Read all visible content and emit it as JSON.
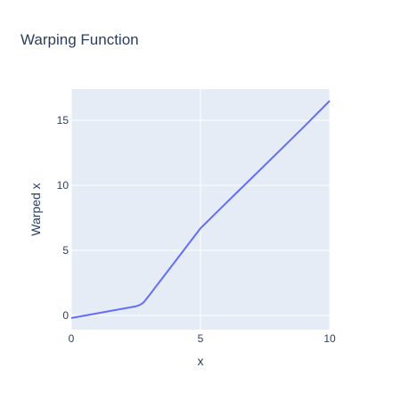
{
  "chart_data": {
    "type": "line",
    "title": "Warping Function",
    "xlabel": "x",
    "ylabel": "Warped x",
    "xlim": [
      0,
      10
    ],
    "ylim": [
      -1.1,
      17.4
    ],
    "xticks": [
      0,
      5,
      10
    ],
    "yticks": [
      0,
      5,
      10,
      15
    ],
    "grid": true,
    "colors": {
      "line": "#636efa",
      "plot_bg": "#e5ecf6",
      "grid": "#ffffff",
      "text": "#2a3f5f"
    },
    "series": [
      {
        "x": [
          0,
          0.5,
          1,
          1.5,
          2,
          2.5,
          2.6,
          2.7,
          2.8,
          3,
          4,
          5,
          6,
          7,
          8,
          9,
          10
        ],
        "y": [
          -0.2,
          -0.02,
          0.16,
          0.34,
          0.52,
          0.7,
          0.76,
          0.86,
          1.0,
          1.5,
          4.1,
          6.7,
          8.66,
          10.6,
          12.55,
          14.5,
          16.5
        ]
      }
    ]
  }
}
